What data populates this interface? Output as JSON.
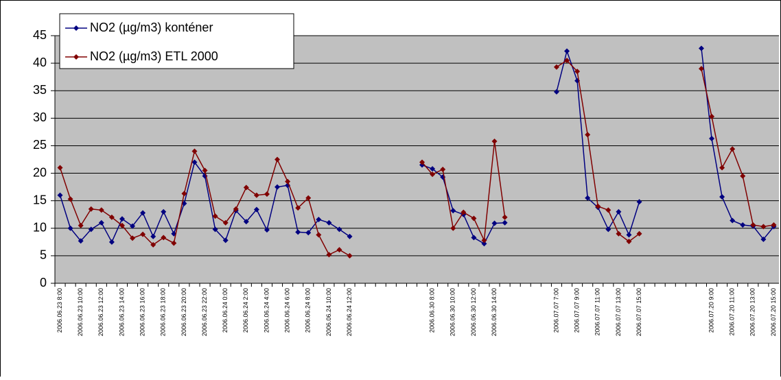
{
  "chart_data": {
    "type": "line",
    "categories": [
      "2006.06.23 8:00",
      null,
      "2006.06.23 10:00",
      null,
      "2006.06.23 12:00",
      null,
      "2006.06.23 14:00",
      null,
      "2006.06.23 16:00",
      null,
      "2006.06.23 18:00",
      null,
      "2006.06.23 20:00",
      null,
      "2006.06.23 22:00",
      null,
      "2006.06.24 0:00",
      null,
      "2006.06.24 2:00",
      null,
      "2006.06.24 4:00",
      null,
      "2006.06.24 6:00",
      null,
      "2006.06.24 8:00",
      null,
      "2006.06.24 10:00",
      null,
      "2006.06.24 12:00",
      null,
      null,
      null,
      null,
      null,
      null,
      null,
      "2006.06.30 8:00",
      null,
      "2006.06.30 10:00",
      null,
      "2006.06.30 12:00",
      null,
      "2006.06.30 14:00",
      null,
      null,
      null,
      null,
      null,
      "2006.07.07 7:00",
      null,
      "2006.07.07 9:00",
      null,
      "2006.07.07 11:00",
      null,
      "2006.07.07 13:00",
      null,
      "2006.07.07 15:00",
      null,
      null,
      null,
      null,
      null,
      null,
      "2006.07.20 9:00",
      null,
      "2006.07.20 11:00",
      null,
      "2006.07.20 13:00",
      null,
      "2006.07.20 15:00"
    ],
    "series": [
      {
        "name": "NO2 (µg/m3) konténer",
        "color": "#000080",
        "values": [
          16,
          10,
          7.7,
          9.8,
          11,
          7.5,
          11.7,
          10.4,
          12.8,
          8.5,
          13,
          9,
          14.5,
          22,
          19.5,
          9.8,
          7.8,
          13.2,
          11.2,
          13.4,
          9.7,
          17.5,
          17.8,
          9.3,
          9.2,
          11.6,
          11,
          9.8,
          8.5,
          null,
          null,
          null,
          null,
          null,
          null,
          21.5,
          20.8,
          19.3,
          13.2,
          12.5,
          8.3,
          7.2,
          10.9,
          11,
          null,
          null,
          null,
          null,
          34.8,
          42.2,
          36.8,
          15.5,
          13.8,
          9.8,
          13,
          8.8,
          14.8,
          null,
          null,
          null,
          null,
          null,
          42.7,
          26.3,
          15.7,
          11.4,
          10.6,
          10.4,
          8,
          10.3
        ]
      },
      {
        "name": "NO2 (µg/m3) ETL 2000",
        "color": "#800000",
        "values": [
          21,
          15.3,
          10.5,
          13.5,
          13.3,
          12,
          10.5,
          8.2,
          8.9,
          7,
          8.3,
          7.3,
          16.3,
          24,
          20.5,
          12.2,
          11,
          13.5,
          17.4,
          16,
          16.2,
          22.5,
          18.5,
          13.7,
          15.5,
          8.8,
          5.2,
          6.1,
          5,
          null,
          null,
          null,
          null,
          null,
          null,
          22,
          19.8,
          20.7,
          10,
          12.9,
          11.8,
          7.8,
          25.8,
          12,
          null,
          null,
          null,
          null,
          39.3,
          40.5,
          38.5,
          27,
          14,
          13.3,
          9,
          7.6,
          9,
          null,
          null,
          null,
          null,
          null,
          39,
          30.3,
          21,
          24.4,
          19.5,
          10.6,
          10.3,
          10.6
        ]
      }
    ],
    "ylim": [
      0,
      45
    ],
    "yticks": [
      0,
      5,
      10,
      15,
      20,
      25,
      30,
      35,
      40,
      45
    ],
    "grid": true,
    "legend": "top-left"
  }
}
